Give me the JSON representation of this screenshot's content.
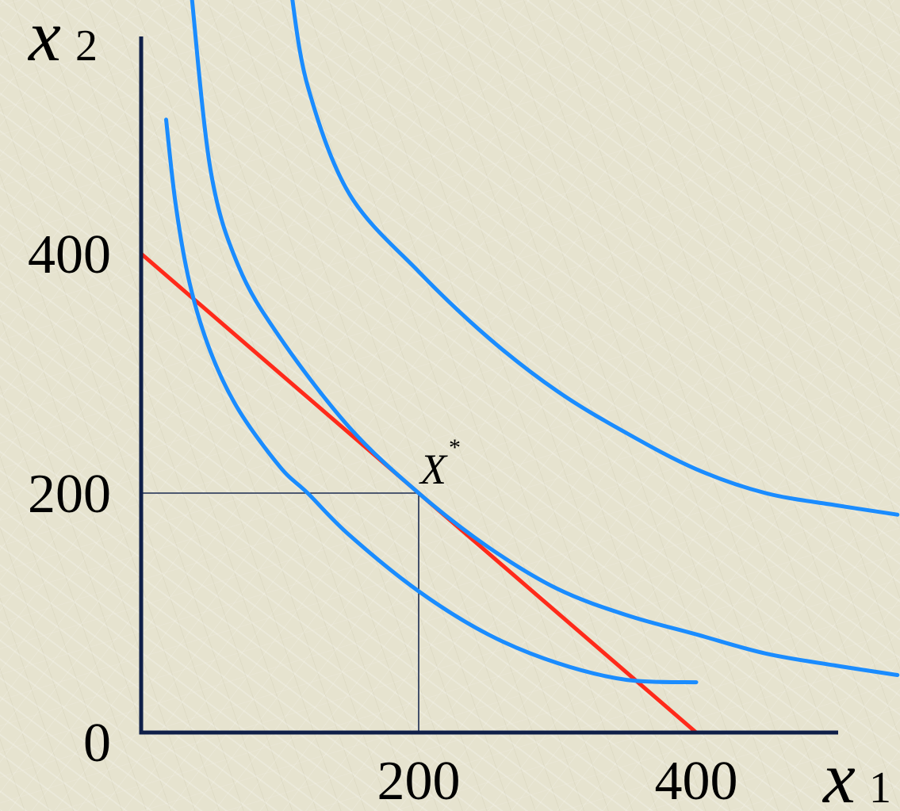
{
  "chart_data": {
    "type": "line",
    "title": "",
    "xlabel": "x",
    "xlabel_sub": "1",
    "ylabel": "x",
    "ylabel_sub": "2",
    "xlim": [
      0,
      500
    ],
    "ylim": [
      0,
      540
    ],
    "x_ticks": [
      {
        "value": 200,
        "label": "200"
      },
      {
        "value": 400,
        "label": "400"
      }
    ],
    "y_ticks": [
      {
        "value": 0,
        "label": "0"
      },
      {
        "value": 200,
        "label": "200"
      },
      {
        "value": 400,
        "label": "400"
      }
    ],
    "grid": false,
    "series": [
      {
        "kind": "budget-line",
        "color": "#ff2a1a",
        "points": [
          [
            0,
            400
          ],
          [
            400,
            0
          ]
        ]
      },
      {
        "kind": "indifference-curve",
        "color": "#1a8cff",
        "points": [
          [
            18,
            512
          ],
          [
            25,
            440
          ],
          [
            35,
            375
          ],
          [
            50,
            318
          ],
          [
            70,
            270
          ],
          [
            100,
            222
          ],
          [
            120,
            200
          ],
          [
            150,
            165
          ],
          [
            200,
            118
          ],
          [
            250,
            82
          ],
          [
            300,
            58
          ],
          [
            350,
            44
          ],
          [
            400,
            42
          ]
        ]
      },
      {
        "kind": "indifference-curve",
        "color": "#1a8cff",
        "points": [
          [
            36,
            620
          ],
          [
            50,
            470
          ],
          [
            70,
            390
          ],
          [
            100,
            330
          ],
          [
            150,
            255
          ],
          [
            200,
            200
          ],
          [
            250,
            155
          ],
          [
            300,
            120
          ],
          [
            350,
            98
          ],
          [
            400,
            82
          ],
          [
            450,
            66
          ],
          [
            500,
            56
          ],
          [
            545,
            48
          ]
        ]
      },
      {
        "kind": "indifference-curve",
        "color": "#1a8cff",
        "points": [
          [
            108,
            620
          ],
          [
            120,
            540
          ],
          [
            150,
            450
          ],
          [
            200,
            385
          ],
          [
            250,
            330
          ],
          [
            300,
            285
          ],
          [
            350,
            250
          ],
          [
            400,
            220
          ],
          [
            450,
            200
          ],
          [
            500,
            190
          ],
          [
            545,
            182
          ]
        ]
      }
    ],
    "guides": [
      {
        "from": [
          0,
          200
        ],
        "to": [
          200,
          200
        ]
      },
      {
        "from": [
          200,
          0
        ],
        "to": [
          200,
          200
        ]
      }
    ],
    "annotations": [
      {
        "text": "X",
        "superscript": "*",
        "x": 200,
        "y": 200
      }
    ],
    "colors": {
      "axis": "#0f1f48",
      "guide": "#1a2a50",
      "budget": "#ff2a1a",
      "curve": "#1a8cff",
      "background": "#e6e3cf"
    }
  }
}
